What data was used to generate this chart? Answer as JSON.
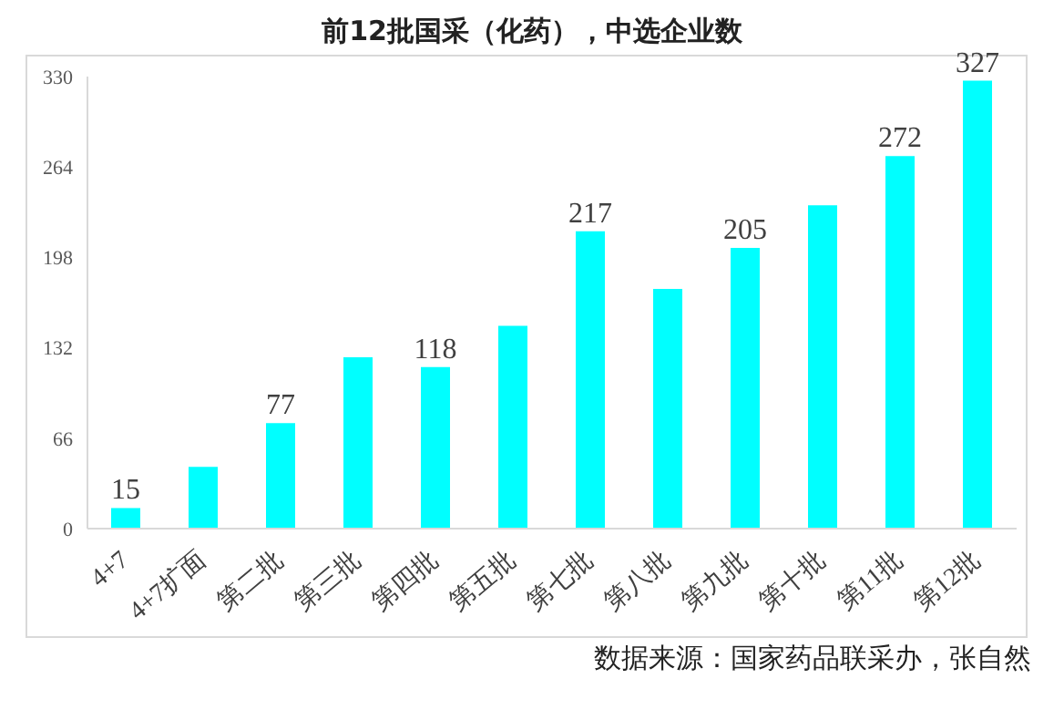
{
  "chart_data": {
    "type": "bar",
    "title": "前12批国采（化药），中选企业数",
    "categories": [
      "4+7",
      "4+7扩面",
      "第二批",
      "第三批",
      "第四批",
      "第五批",
      "第七批",
      "第八批",
      "第九批",
      "第十批",
      "第11批",
      "第12批"
    ],
    "values": [
      15,
      45,
      77,
      125,
      118,
      148,
      217,
      175,
      205,
      236,
      272,
      327
    ],
    "value_labels": [
      "15",
      null,
      "77",
      null,
      "118",
      null,
      "217",
      null,
      "205",
      null,
      "272",
      "327"
    ],
    "color": "#00ffff",
    "ylim": [
      0,
      330
    ],
    "yticks": [
      0,
      66,
      132,
      198,
      264,
      330
    ],
    "grid": false,
    "annotations": [
      "数据来源：国家药品联采办，张自然"
    ]
  }
}
